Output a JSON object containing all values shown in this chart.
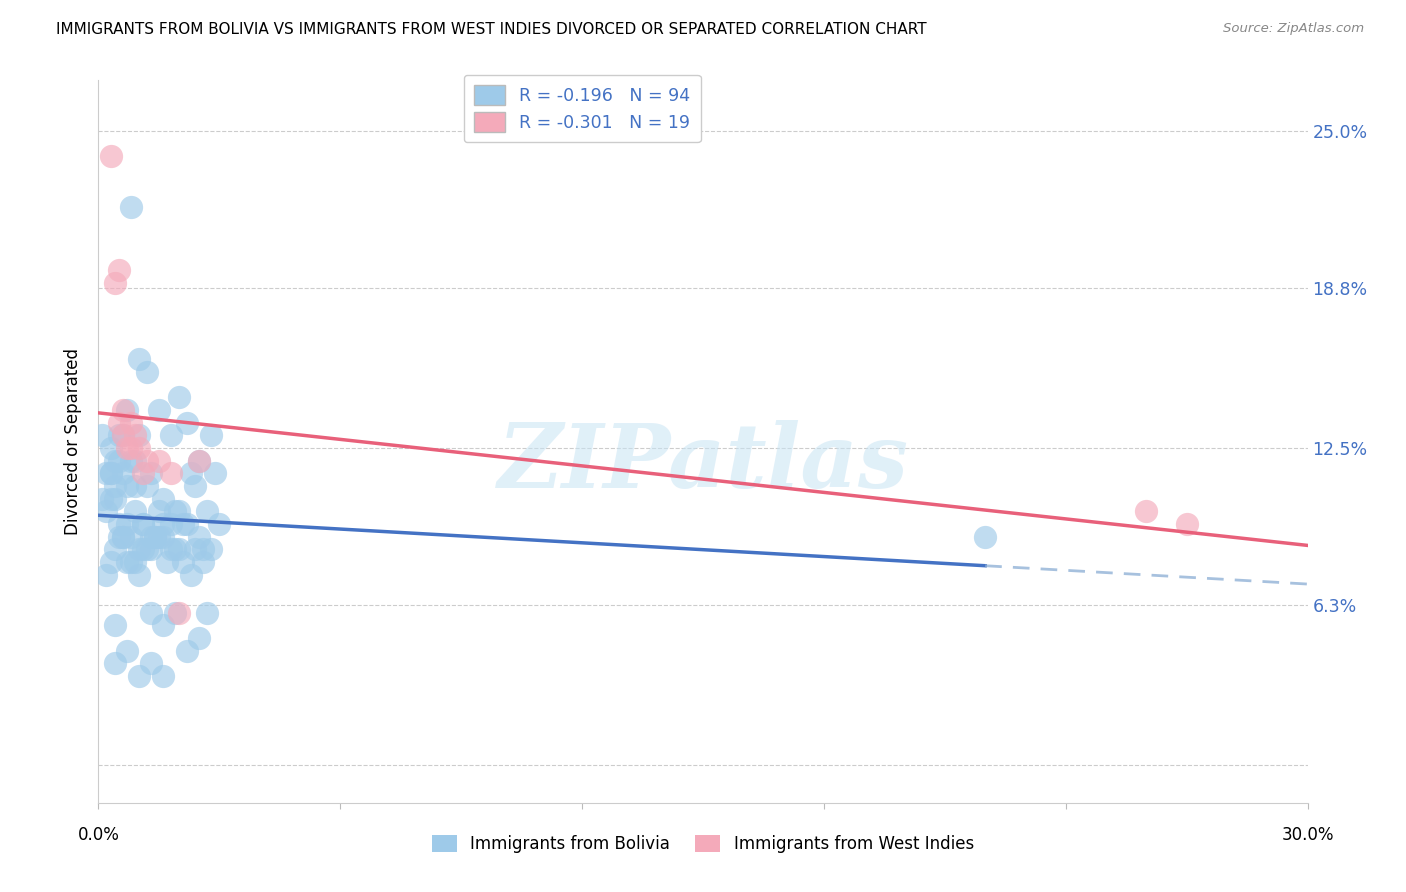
{
  "title": "IMMIGRANTS FROM BOLIVIA VS IMMIGRANTS FROM WEST INDIES DIVORCED OR SEPARATED CORRELATION CHART",
  "source": "Source: ZipAtlas.com",
  "ylabel": "Divorced or Separated",
  "ytick_vals": [
    0.0,
    0.063,
    0.125,
    0.188,
    0.25
  ],
  "ytick_labels": [
    "",
    "6.3%",
    "12.5%",
    "18.8%",
    "25.0%"
  ],
  "xlim": [
    0.0,
    0.3
  ],
  "ylim": [
    -0.015,
    0.27
  ],
  "legend_label1": "Immigrants from Bolivia",
  "legend_label2": "Immigrants from West Indies",
  "color_blue": "#9ECAE9",
  "color_pink": "#F4AABA",
  "color_blue_line": "#4472C4",
  "color_pink_line": "#E8607A",
  "color_blue_text": "#4472C4",
  "bolivia_r": -0.196,
  "westindies_r": -0.301,
  "bolivia_n": 94,
  "westindies_n": 19,
  "bolivia_x": [
    0.01,
    0.008,
    0.005,
    0.003,
    0.004,
    0.005,
    0.007,
    0.009,
    0.012,
    0.015,
    0.003,
    0.004,
    0.006,
    0.008,
    0.01,
    0.012,
    0.015,
    0.018,
    0.02,
    0.022,
    0.025,
    0.028,
    0.029,
    0.001,
    0.002,
    0.003,
    0.005,
    0.007,
    0.009,
    0.011,
    0.013,
    0.016,
    0.019,
    0.021,
    0.024,
    0.027,
    0.03,
    0.004,
    0.006,
    0.008,
    0.01,
    0.013,
    0.015,
    0.018,
    0.02,
    0.023,
    0.026,
    0.003,
    0.005,
    0.007,
    0.009,
    0.011,
    0.014,
    0.016,
    0.019,
    0.022,
    0.025,
    0.028,
    0.002,
    0.004,
    0.006,
    0.008,
    0.011,
    0.013,
    0.016,
    0.018,
    0.021,
    0.024,
    0.001,
    0.003,
    0.006,
    0.009,
    0.012,
    0.014,
    0.017,
    0.02,
    0.023,
    0.026,
    0.002,
    0.004,
    0.007,
    0.01,
    0.013,
    0.016,
    0.019,
    0.022,
    0.025,
    0.027,
    0.004,
    0.007,
    0.01,
    0.013,
    0.22,
    0.016
  ],
  "bolivia_y": [
    0.13,
    0.22,
    0.13,
    0.125,
    0.11,
    0.12,
    0.14,
    0.12,
    0.11,
    0.1,
    0.115,
    0.105,
    0.13,
    0.12,
    0.16,
    0.155,
    0.14,
    0.13,
    0.145,
    0.135,
    0.12,
    0.13,
    0.115,
    0.13,
    0.115,
    0.105,
    0.095,
    0.11,
    0.1,
    0.095,
    0.09,
    0.105,
    0.1,
    0.095,
    0.11,
    0.1,
    0.095,
    0.12,
    0.115,
    0.09,
    0.085,
    0.115,
    0.09,
    0.095,
    0.1,
    0.115,
    0.085,
    0.115,
    0.09,
    0.095,
    0.11,
    0.085,
    0.09,
    0.095,
    0.085,
    0.095,
    0.09,
    0.085,
    0.1,
    0.085,
    0.09,
    0.08,
    0.095,
    0.085,
    0.09,
    0.085,
    0.08,
    0.085,
    0.105,
    0.08,
    0.09,
    0.08,
    0.085,
    0.09,
    0.08,
    0.085,
    0.075,
    0.08,
    0.075,
    0.055,
    0.08,
    0.075,
    0.06,
    0.055,
    0.06,
    0.045,
    0.05,
    0.06,
    0.04,
    0.045,
    0.035,
    0.04,
    0.09,
    0.035
  ],
  "westindies_x": [
    0.003,
    0.004,
    0.005,
    0.005,
    0.006,
    0.007,
    0.008,
    0.008,
    0.009,
    0.01,
    0.011,
    0.012,
    0.015,
    0.018,
    0.025,
    0.26,
    0.27,
    0.02,
    0.006
  ],
  "westindies_y": [
    0.24,
    0.19,
    0.195,
    0.135,
    0.14,
    0.125,
    0.135,
    0.125,
    0.13,
    0.125,
    0.115,
    0.12,
    0.12,
    0.115,
    0.12,
    0.1,
    0.095,
    0.06,
    0.13
  ]
}
